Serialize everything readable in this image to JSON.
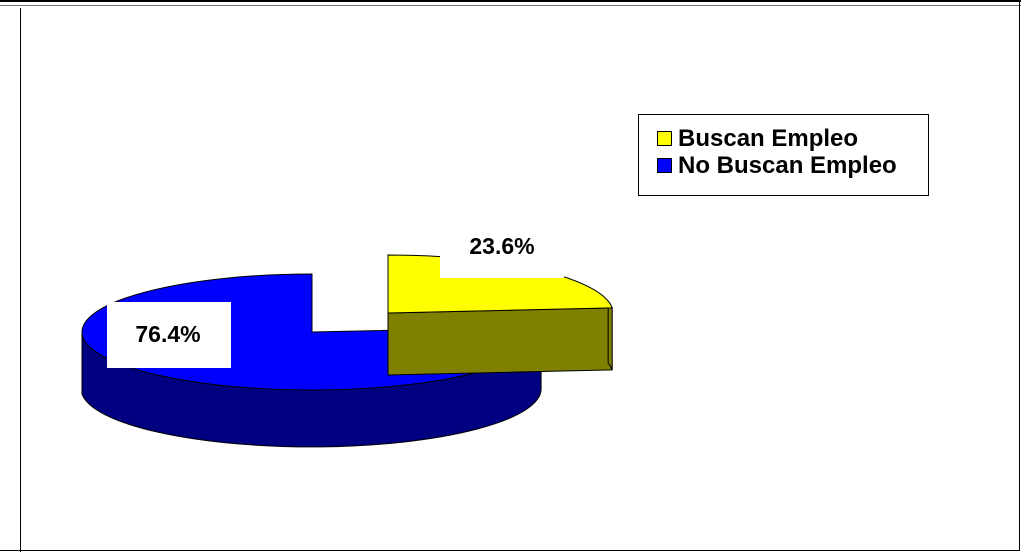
{
  "chart_data": {
    "type": "pie",
    "categories": [
      "Buscan Empleo",
      "No Buscan Empleo"
    ],
    "values": [
      23.6,
      76.4
    ],
    "data_labels": [
      "23.6%",
      "76.4%"
    ],
    "colors": [
      "#ffff00",
      "#0000ff"
    ],
    "side_colors": [
      "#808000",
      "#000080"
    ],
    "legend": {
      "position": "top-right",
      "entries": [
        "Buscan Empleo",
        "No Buscan Empleo"
      ]
    },
    "exploded": true,
    "three_d": true
  }
}
